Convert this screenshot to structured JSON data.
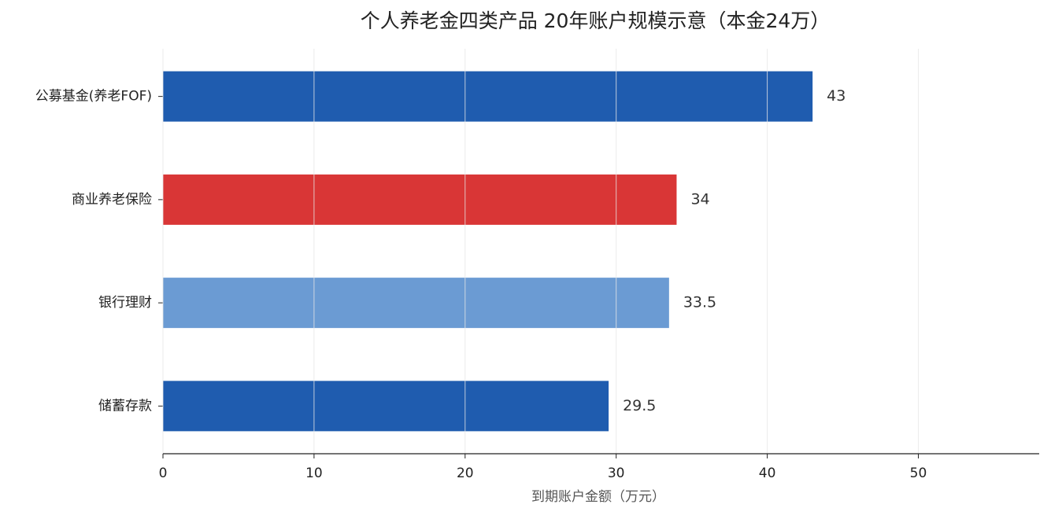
{
  "chart_data": {
    "type": "bar",
    "orientation": "horizontal",
    "title": "个人养老金四类产品 20年账户规模示意（本金24万）",
    "xlabel": "到期账户金额（万元）",
    "categories": [
      "公募基金(养老FOF)",
      "商业养老保险",
      "银行理财",
      "储蓄存款"
    ],
    "values": [
      43,
      34,
      33.5,
      29.5
    ],
    "colors": [
      "#1f5caf",
      "#d93636",
      "#6b9bd3",
      "#1f5caf"
    ],
    "xlim": [
      0,
      58
    ],
    "xticks": [
      0,
      10,
      20,
      30,
      40,
      50
    ],
    "grid": true
  }
}
